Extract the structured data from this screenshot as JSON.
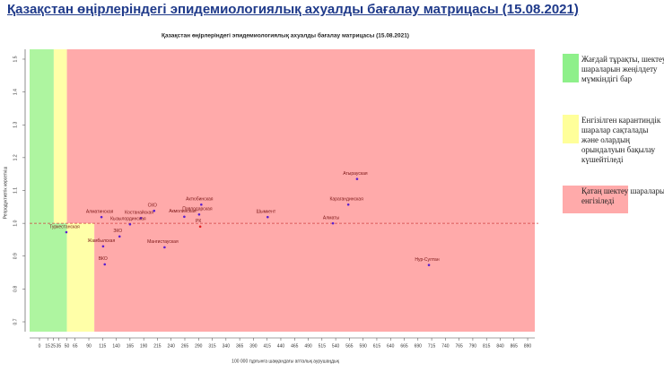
{
  "header": {
    "title": "Қазақстан өңірлеріндегі эпидемиологиялық ахуалды бағалау матрицасы  (15.08.2021)"
  },
  "chart_data": {
    "type": "scatter",
    "title": "Қазақстан өңірлеріндегі эпидемиологиялық ахуалды бағалау матрицасы  (15.08.2021)",
    "x_label": "100 000 тұрғынға шаққандағы апталық аурушаңдық",
    "y_label": "Репродуктивтік көрсеткіш",
    "xlim": [
      -18,
      903
    ],
    "ylim": [
      0.67,
      1.53
    ],
    "xticks": [
      0,
      15,
      25,
      35,
      50,
      65,
      90,
      115,
      140,
      165,
      190,
      215,
      240,
      265,
      290,
      315,
      340,
      365,
      390,
      415,
      440,
      465,
      490,
      515,
      540,
      565,
      590,
      615,
      640,
      665,
      690,
      715,
      740,
      765,
      790,
      815,
      840,
      865,
      890
    ],
    "yticks": [
      0.7,
      0.8,
      0.9,
      {
        "value": 1,
        "label": "1.0"
      },
      1.1,
      1.2,
      1.3,
      1.4,
      1.5
    ],
    "reference_line": {
      "value": 1,
      "color": "#d04040"
    },
    "zones": [
      {
        "color": "#aef5a0",
        "x": [
          -18,
          26
        ],
        "y": [
          1,
          1.53
        ]
      },
      {
        "color": "#ffffa8",
        "x": [
          26,
          50
        ],
        "y": [
          1,
          1.53
        ]
      },
      {
        "color": "#ffaaaa",
        "x": [
          50,
          903
        ],
        "y": [
          1,
          1.53
        ]
      },
      {
        "color": "#aef5a0",
        "x": [
          -18,
          50
        ],
        "y": [
          0.67,
          1
        ]
      },
      {
        "color": "#ffffa8",
        "x": [
          50,
          100
        ],
        "y": [
          0.67,
          1
        ]
      },
      {
        "color": "#ffaaaa",
        "x": [
          100,
          903
        ],
        "y": [
          0.67,
          1
        ]
      }
    ],
    "points": [
      {
        "label": "Атырауская",
        "x": 579,
        "y": 1.135,
        "color": "#5a1fd0"
      },
      {
        "label": "Карагандинская",
        "x": 563,
        "y": 1.057,
        "color": "#5a1fd0"
      },
      {
        "label": "Актюбинская",
        "x": 295,
        "y": 1.057,
        "color": "#5a1fd0"
      },
      {
        "label": "СКО",
        "x": 209,
        "y": 1.038,
        "color": "#5a1fd0"
      },
      {
        "label": "Павлодарская",
        "x": 291,
        "y": 1.027,
        "color": "#5a1fd0"
      },
      {
        "label": "Алматинская",
        "x": 113,
        "y": 1.019,
        "color": "#5a1fd0"
      },
      {
        "label": "Костанайская",
        "x": 185,
        "y": 1.016,
        "color": "#5a1fd0"
      },
      {
        "label": "Акмолинская",
        "x": 264,
        "y": 1.02,
        "color": "#5a1fd0"
      },
      {
        "label": "Шымкент",
        "x": 416,
        "y": 1.019,
        "color": "#5a1fd0"
      },
      {
        "label": "Туркестанская",
        "x": 49,
        "y": 0.973,
        "color": "#5a1fd0"
      },
      {
        "label": "Кызылординская",
        "x": 165,
        "y": 0.997,
        "color": "#5a1fd0"
      },
      {
        "label": "РК",
        "x": 293,
        "y": 0.99,
        "color": "#e02020"
      },
      {
        "label": "Алматы",
        "x": 535,
        "y": 1.0,
        "color": "#5a1fd0"
      },
      {
        "label": "ЗКО",
        "x": 146,
        "y": 0.96,
        "color": "#5a1fd0"
      },
      {
        "label": "Жамбылская",
        "x": 116,
        "y": 0.93,
        "color": "#5a1fd0"
      },
      {
        "label": "Мангистауская",
        "x": 228,
        "y": 0.927,
        "color": "#5a1fd0"
      },
      {
        "label": "ВКО",
        "x": 119,
        "y": 0.875,
        "color": "#5a1fd0"
      },
      {
        "label": "Нур-Султан",
        "x": 710,
        "y": 0.873,
        "color": "#5a1fd0"
      }
    ]
  },
  "legend": [
    {
      "color": "#8ef08a",
      "text": "Жағдай тұрақты, шектеу шараларын жеңілдету мүмкіндігі бар"
    },
    {
      "color": "#ffff9a",
      "text": "Енгізілген карантиндік шаралар сақталады және олардың орындалуын бақылау күшейтіледі"
    },
    {
      "color": "#ffaaaa",
      "text": "Қатаң шектеу шаралары енгізіледі"
    }
  ]
}
